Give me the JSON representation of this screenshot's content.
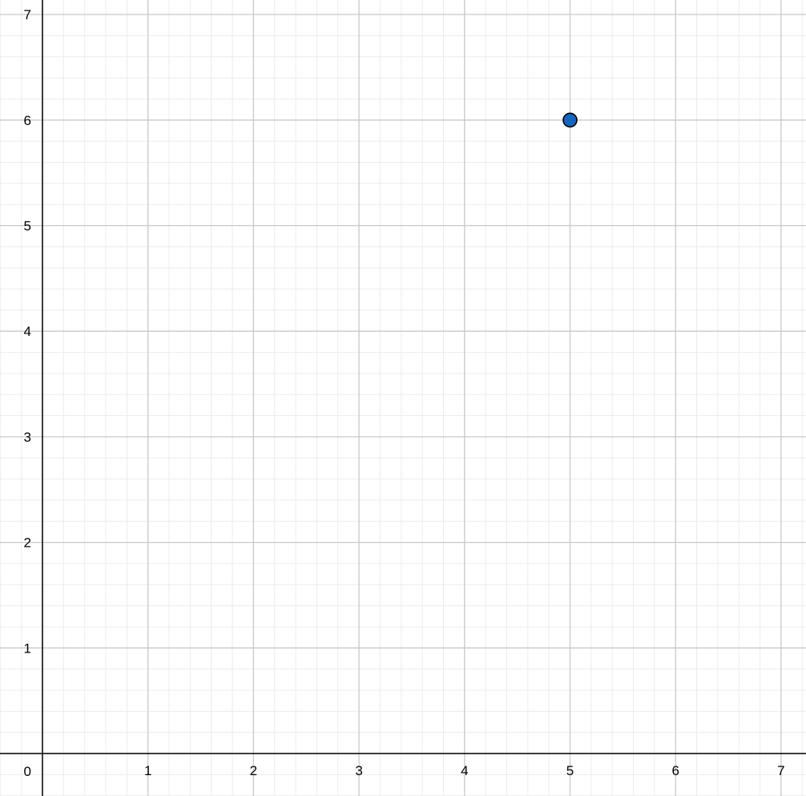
{
  "chart_data": {
    "type": "scatter",
    "title": "",
    "xlabel": "",
    "ylabel": "",
    "xlim": [
      -0.4,
      7.24
    ],
    "ylim": [
      -0.4,
      7.14
    ],
    "grid": true,
    "minor_grid_per_unit": 5,
    "x_ticks": [
      "1",
      "2",
      "3",
      "4",
      "5",
      "6",
      "7"
    ],
    "y_ticks": [
      "1",
      "2",
      "3",
      "4",
      "5",
      "6",
      "7"
    ],
    "origin_label": "0",
    "points": [
      {
        "x": 5,
        "y": 6
      }
    ],
    "colors": {
      "point_fill": "#1565c0",
      "point_stroke": "#000000",
      "major_grid": "#c8c8c8",
      "minor_grid": "#ececec",
      "axis": "#000000"
    }
  }
}
